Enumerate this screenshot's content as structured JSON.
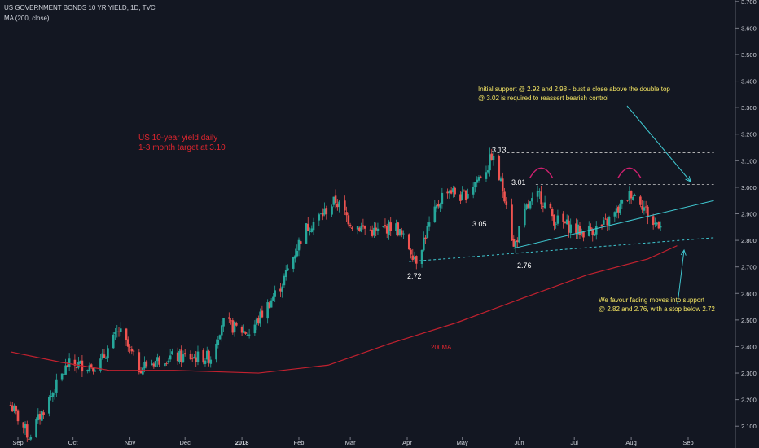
{
  "header": {
    "symbol_line": "US GOVERNMENT BONDS 10 YR YIELD, 1D, TVC",
    "indicator_line": "MA (200, close)"
  },
  "colors": {
    "background": "#131722",
    "up": "#26a69a",
    "down": "#ef5350",
    "ma": "#c2212f",
    "text": "#d1d4dc",
    "annotation_red": "#e0262f",
    "annotation_yellow": "#f5e663",
    "trend_cyan": "#3fc6cf",
    "arc_magenta": "#d0206f",
    "dashed_line": "#c7c7c7"
  },
  "annotations": {
    "target_note_1": "US 10-year yield daily",
    "target_note_2": "1-3 month target at 3.10",
    "support_note_1": "Initial support @ 2.92 and 2.98 - bust a close above the double top",
    "support_note_2": "@ 3.02 is required to reassert bearish control",
    "fade_note_1": "We favour fading moves into support",
    "fade_note_2": "@ 2.82 and 2.76, with a stop below 2.72",
    "ma_label": "200MA",
    "level_313": "3.13",
    "level_301": "3.01",
    "level_305": "3.05",
    "level_276": "2.76",
    "level_272": "2.72"
  },
  "chart_data": {
    "type": "candlestick",
    "title": "US GOVERNMENT BONDS 10 YR YIELD, 1D, TVC",
    "y_ticks": [
      "3.700",
      "3.600",
      "3.500",
      "3.400",
      "3.300",
      "3.200",
      "3.100",
      "3.000",
      "2.900",
      "2.800",
      "2.700",
      "2.600",
      "2.500",
      "2.400",
      "2.300",
      "2.200",
      "2.100"
    ],
    "ylim": [
      2.07,
      3.72
    ],
    "x_ticks": [
      "Sep",
      "Oct",
      "Nov",
      "Dec",
      "2018",
      "Feb",
      "Mar",
      "Apr",
      "May",
      "Jun",
      "Jul",
      "Aug",
      "Sep"
    ],
    "x_range": [
      "2017-08-28",
      "2018-09-15"
    ],
    "price_path": [
      [
        "2017-08-28",
        2.18
      ],
      [
        "2017-09-07",
        2.06
      ],
      [
        "2017-09-28",
        2.33
      ],
      [
        "2017-10-15",
        2.33
      ],
      [
        "2017-10-26",
        2.46
      ],
      [
        "2017-11-06",
        2.32
      ],
      [
        "2017-11-20",
        2.36
      ],
      [
        "2017-12-05",
        2.36
      ],
      [
        "2017-12-15",
        2.36
      ],
      [
        "2017-12-21",
        2.49
      ],
      [
        "2018-01-05",
        2.45
      ],
      [
        "2018-01-23",
        2.64
      ],
      [
        "2018-02-04",
        2.84
      ],
      [
        "2018-02-14",
        2.9
      ],
      [
        "2018-02-21",
        2.95
      ],
      [
        "2018-03-02",
        2.86
      ],
      [
        "2018-03-15",
        2.83
      ],
      [
        "2018-03-25",
        2.86
      ],
      [
        "2018-04-06",
        2.73
      ],
      [
        "2018-04-12",
        2.84
      ],
      [
        "2018-04-22",
        3.0
      ],
      [
        "2018-05-01",
        2.96
      ],
      [
        "2018-05-15",
        3.08
      ],
      [
        "2018-05-17",
        3.12
      ],
      [
        "2018-05-25",
        2.95
      ],
      [
        "2018-05-29",
        2.77
      ],
      [
        "2018-06-05",
        2.92
      ],
      [
        "2018-06-12",
        2.97
      ],
      [
        "2018-06-20",
        2.88
      ],
      [
        "2018-07-05",
        2.83
      ],
      [
        "2018-07-16",
        2.85
      ],
      [
        "2018-07-22",
        2.89
      ],
      [
        "2018-08-01",
        2.98
      ],
      [
        "2018-08-06",
        2.95
      ],
      [
        "2018-08-13",
        2.86
      ],
      [
        "2018-08-17",
        2.87
      ]
    ],
    "ma_200": {
      "name": "200MA",
      "points": [
        [
          "2017-08-28",
          2.38
        ],
        [
          "2017-09-25",
          2.34
        ],
        [
          "2017-10-21",
          2.31
        ],
        [
          "2017-11-25",
          2.31
        ],
        [
          "2018-01-10",
          2.3
        ],
        [
          "2018-02-17",
          2.33
        ],
        [
          "2018-03-22",
          2.41
        ],
        [
          "2018-04-28",
          2.49
        ],
        [
          "2018-06-02",
          2.58
        ],
        [
          "2018-07-08",
          2.67
        ],
        [
          "2018-08-10",
          2.73
        ],
        [
          "2018-08-26",
          2.78
        ]
      ]
    },
    "levels": [
      {
        "name": "double-top-level",
        "value": 3.13,
        "from": "2018-05-20",
        "to": "2018-09-15",
        "style": "dashed"
      },
      {
        "name": "resistance-level",
        "value": 3.01,
        "from": "2018-06-10",
        "to": "2018-09-15",
        "style": "dashed"
      }
    ],
    "trendlines": [
      {
        "name": "rising-support-line",
        "from": [
          "2018-05-29",
          2.77
        ],
        "to": [
          "2018-09-15",
          2.95
        ],
        "style": "solid"
      },
      {
        "name": "lower-support-line",
        "from": [
          "2018-04-02",
          2.72
        ],
        "to": [
          "2018-09-15",
          2.81
        ],
        "style": "dashed"
      }
    ]
  }
}
